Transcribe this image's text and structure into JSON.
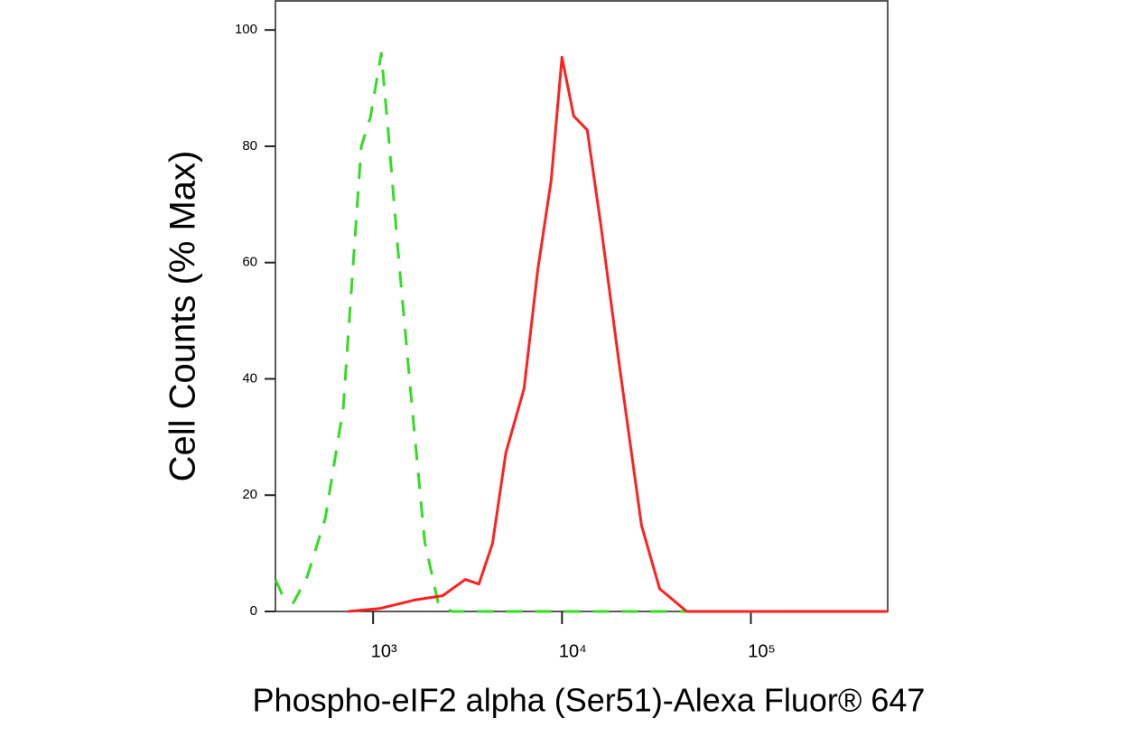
{
  "chart_data": {
    "type": "line",
    "x_label": "Phospho-eIF2 alpha (Ser51)-Alexa Fluor® 647",
    "y_label": "Cell Counts (% Max)",
    "x_scale": "log",
    "xlim": [
      304,
      530000
    ],
    "xticks": [
      {
        "value": 1000,
        "label": "10³"
      },
      {
        "value": 10000,
        "label": "10⁴"
      },
      {
        "value": 100000,
        "label": "10⁵"
      }
    ],
    "ylim": [
      0,
      105
    ],
    "yticks": [
      0,
      20,
      40,
      60,
      80,
      100
    ],
    "grid": false,
    "series": [
      {
        "color": "#33dd22",
        "dashed": true,
        "x": [
          304,
          329,
          379,
          448,
          558,
          695,
          866,
          968,
          1104,
          1206,
          1346,
          1588,
          1875,
          2209,
          2607,
          530000
        ],
        "values": [
          5.5,
          3,
          1.5,
          6,
          16,
          35,
          80,
          85,
          96,
          82,
          63,
          37,
          12,
          1.5,
          0,
          0
        ]
      },
      {
        "color": "#ff2020",
        "dashed": false,
        "x": [
          735,
          1080,
          1679,
          2333,
          3076,
          3631,
          4285,
          5047,
          6295,
          7430,
          8770,
          10000,
          11540,
          13610,
          16070,
          20000,
          26360,
          32890,
          45750,
          530000
        ],
        "values": [
          0,
          0.5,
          2,
          2.7,
          5.5,
          4.7,
          11.7,
          27.3,
          38.3,
          58.6,
          74.2,
          95.3,
          85.2,
          82.8,
          66.4,
          43,
          14.8,
          3.9,
          0,
          0
        ]
      }
    ]
  }
}
